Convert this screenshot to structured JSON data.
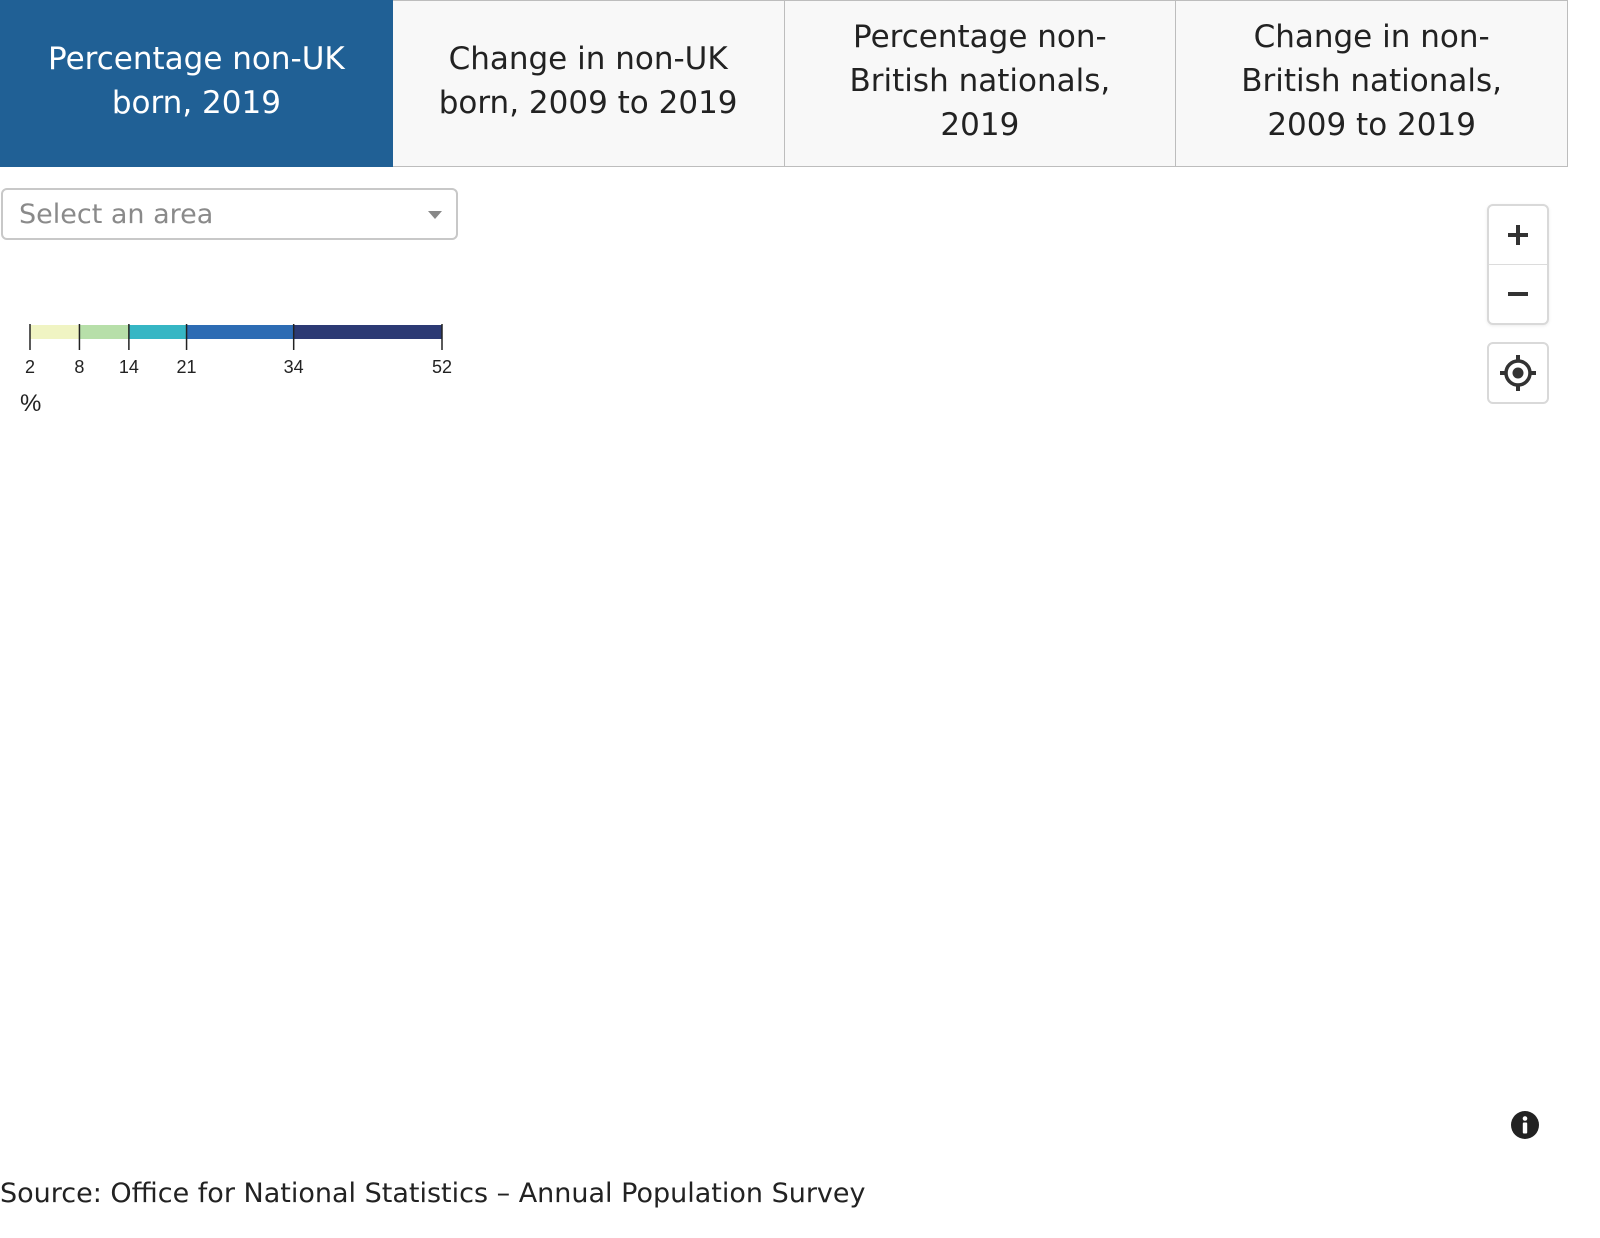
{
  "tabs": [
    {
      "label": "Percentage non-UK born, 2019",
      "active": true
    },
    {
      "label": "Change in non-UK born, 2009 to 2019",
      "active": false
    },
    {
      "label": "Percentage non-British nationals, 2019",
      "active": false
    },
    {
      "label": "Change in non-British nationals, 2009 to 2019",
      "active": false
    }
  ],
  "area_select": {
    "placeholder": "Select an area"
  },
  "legend": {
    "breaks": [
      2,
      8,
      14,
      21,
      34,
      52
    ],
    "tick_labels": [
      "2",
      "8",
      "14",
      "21",
      "34",
      "52"
    ],
    "colors": [
      "#f0f4c3",
      "#b7dfa9",
      "#36b6c4",
      "#2d6cb4",
      "#2c3a74"
    ],
    "unit": "%"
  },
  "map_controls": {
    "zoom_in_icon": "plus-icon",
    "zoom_out_icon": "minus-icon",
    "locate_icon": "crosshair-icon",
    "info_icon": "info-icon"
  },
  "source": "Source: Office for National Statistics – Annual Population Survey"
}
